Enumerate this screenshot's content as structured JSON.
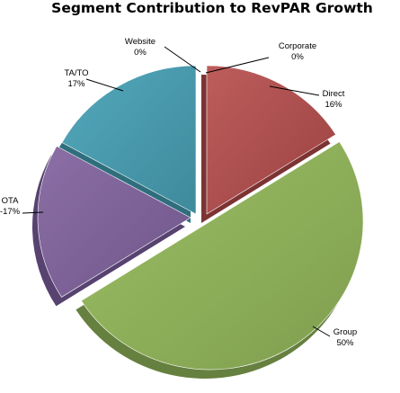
{
  "chart_data": {
    "type": "pie",
    "title": "Segment Contribution to RevPAR Growth",
    "slices": [
      {
        "name": "Corporate",
        "label": "0%",
        "value": 0,
        "color": "#a94a4a"
      },
      {
        "name": "Direct",
        "label": "16%",
        "value": 16,
        "color": "#a94a4a"
      },
      {
        "name": "Group",
        "label": "50%",
        "value": 50,
        "color": "#8cad57"
      },
      {
        "name": "OTA",
        "label": "-17%",
        "value": -17,
        "color": "#7c6197"
      },
      {
        "name": "TA/TO",
        "label": "17%",
        "value": 17,
        "color": "#4799ac"
      },
      {
        "name": "Website",
        "label": "0%",
        "value": 0,
        "color": "#4799ac"
      }
    ],
    "exploded": true,
    "three_d": true,
    "legend": "none"
  }
}
